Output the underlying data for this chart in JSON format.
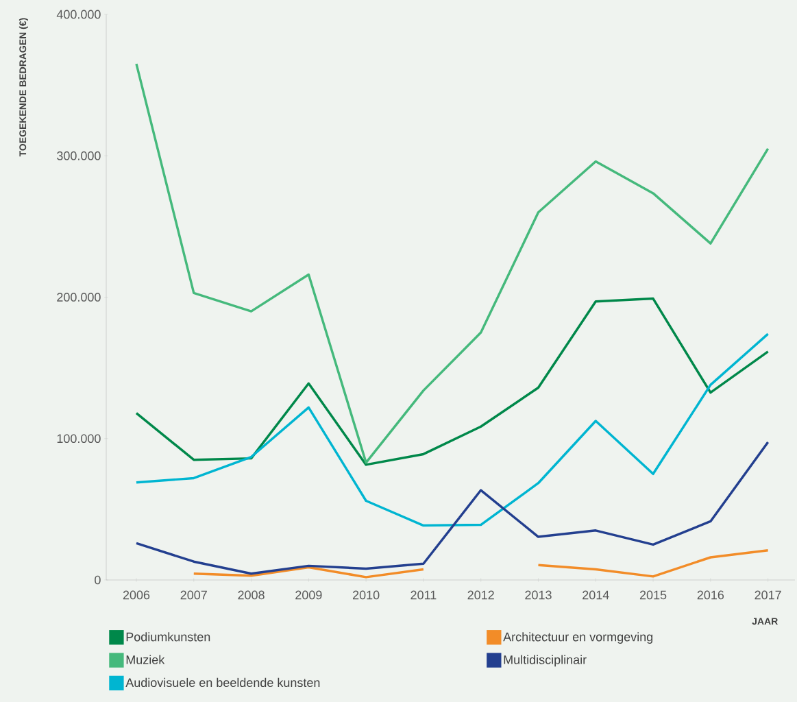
{
  "chart_data": {
    "type": "line",
    "xlabel": "JAAR",
    "ylabel": "TOEGEKENDE BEDRAGEN (€)",
    "categories": [
      "2006",
      "2007",
      "2008",
      "2009",
      "2010",
      "2011",
      "2012",
      "2013",
      "2014",
      "2015",
      "2016",
      "2017"
    ],
    "ylim": [
      0,
      400000
    ],
    "yticks": [
      0,
      {
        "value": 100000,
        "label": "100.000"
      },
      {
        "value": 200000,
        "label": "200.000"
      },
      {
        "value": 300000,
        "label": "300.000"
      },
      {
        "value": 400000,
        "label": "400.000"
      }
    ],
    "grid": false,
    "legend": "bottom",
    "marker": "none",
    "line_style": "solid",
    "series": [
      {
        "name": "Podiumkunsten",
        "color": "#00884a",
        "values": [
          118000,
          85000,
          86000,
          139000,
          81500,
          89000,
          108500,
          136000,
          197000,
          199000,
          132500,
          161500
        ]
      },
      {
        "name": "Muziek",
        "color": "#45b97c",
        "values": [
          365000,
          203000,
          190000,
          216000,
          83000,
          134000,
          175000,
          260000,
          296000,
          273500,
          238000,
          305000
        ]
      },
      {
        "name": "Audiovisuele en beeldende kunsten",
        "color": "#00b5d1",
        "values": [
          69000,
          72000,
          87000,
          122000,
          56000,
          38500,
          39000,
          68500,
          112500,
          75000,
          138000,
          174000
        ]
      },
      {
        "name": "Architectuur en vormgeving",
        "color": "#f28c28",
        "values": [
          null,
          4500,
          3000,
          9000,
          2000,
          7500,
          null,
          10500,
          7500,
          2500,
          16000,
          21000
        ]
      },
      {
        "name": "Multidisciplinair",
        "color": "#233f8f",
        "values": [
          26000,
          13000,
          4500,
          10000,
          8000,
          11500,
          63500,
          30500,
          35000,
          25000,
          41500,
          97500
        ]
      }
    ]
  }
}
